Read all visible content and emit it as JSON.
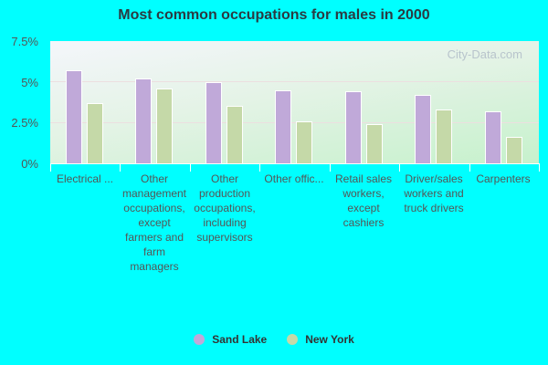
{
  "chart_data": {
    "type": "bar",
    "title": "Most common occupations for males in 2000",
    "xlabel": "",
    "ylabel": "",
    "ylim": [
      0,
      7.5
    ],
    "yticks": [
      "0%",
      "2.5%",
      "5%",
      "7.5%"
    ],
    "categories": [
      "Electrical ...",
      "Other management occupations, except farmers and farm managers",
      "Other production occupations, including supervisors",
      "Other offic...",
      "Retail sales workers, except cashiers",
      "Driver/sales workers and truck drivers",
      "Carpenters"
    ],
    "series": [
      {
        "name": "Sand Lake",
        "color": "#c0a9d9",
        "values": [
          5.7,
          5.2,
          5.0,
          4.5,
          4.4,
          4.2,
          3.2
        ]
      },
      {
        "name": "New York",
        "color": "#c5d9a8",
        "values": [
          3.7,
          4.6,
          3.5,
          2.6,
          2.4,
          3.3,
          1.6
        ]
      }
    ],
    "legend_position": "bottom",
    "grid": true
  },
  "labels": {
    "title": "Most common occupations for males in 2000",
    "watermark": "City-Data.com",
    "yticks": {
      "t0": "0%",
      "t1": "2.5%",
      "t2": "5%",
      "t3": "7.5%"
    },
    "categories": {
      "c0": "Electrical ...",
      "c1": "Other management occupations, except farmers and farm managers",
      "c2": "Other production occupations, including supervisors",
      "c3": "Other offic...",
      "c4": "Retail sales workers, except cashiers",
      "c5": "Driver/sales workers and truck drivers",
      "c6": "Carpenters"
    },
    "legend": {
      "s0": "Sand Lake",
      "s1": "New York"
    }
  }
}
